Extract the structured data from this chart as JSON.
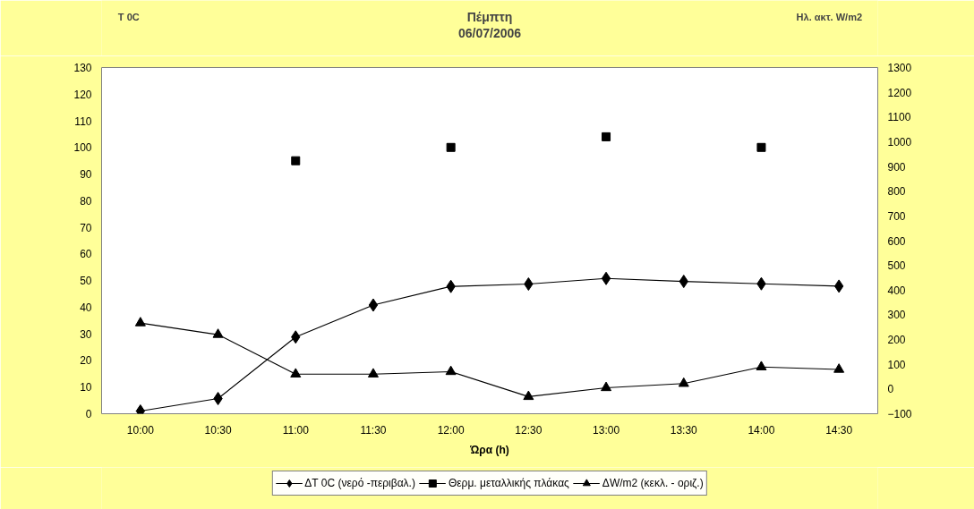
{
  "chart_data": {
    "type": "line",
    "title": "Πέμπτη\n06/07/2006",
    "xlabel": "Ώρα (h)",
    "ylabel": "T 0C",
    "y2label": "Ηλ. ακτ. W/m2",
    "categories": [
      "10:00",
      "10:30",
      "11:00",
      "11:30",
      "12:00",
      "12:30",
      "13:00",
      "13:30",
      "14:00",
      "14:30"
    ],
    "series": [
      {
        "name": "ΔT 0C (νερό -περιβαλ.)",
        "color": "#000000",
        "marker": "diamond",
        "values": [
          1,
          5.7,
          28.8,
          40.8,
          47.8,
          48.7,
          50.8,
          49.7,
          48.8,
          47.9
        ]
      },
      {
        "name": "Θερμ. μεταλλικής πλάκας",
        "color": "#000000",
        "type": "scatter",
        "marker": "square",
        "values": [
          null,
          null,
          95,
          null,
          100,
          null,
          104,
          null,
          100,
          null
        ]
      },
      {
        "name": "ΔW/m2 (κεκλ. - οριζ.)",
        "color": "#000000",
        "marker": "triangle",
        "axis": "y2",
        "values": [
          267,
          220,
          60,
          60,
          70,
          -31,
          5,
          22,
          89,
          79
        ]
      }
    ],
    "ylim": [
      0,
      130
    ],
    "yticks": [
      0,
      10,
      20,
      30,
      40,
      50,
      60,
      70,
      80,
      90,
      100,
      110,
      120,
      130
    ],
    "y2lim": [
      -100,
      1300
    ],
    "y2ticks": [
      -100,
      0,
      100,
      200,
      300,
      400,
      500,
      600,
      700,
      800,
      900,
      1000,
      1100,
      1200,
      1300
    ],
    "grid": false,
    "legend": "bottom",
    "line_style": "solid"
  }
}
